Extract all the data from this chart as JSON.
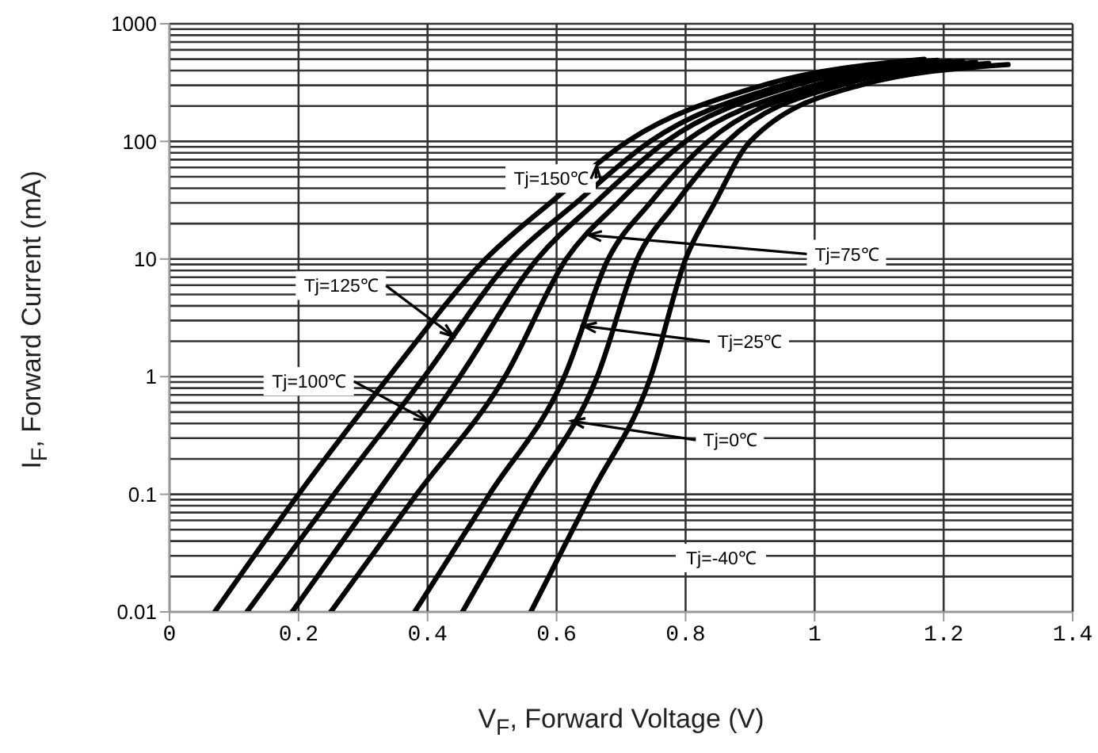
{
  "chart_data": {
    "type": "line",
    "xlabel": "V$_{F}$, Forward Voltage (V)",
    "ylabel": "I$_{F}$, Forward Current (mA)",
    "log": "y",
    "grid": true,
    "marker": "none",
    "line_style": "solid",
    "xlim": [
      0,
      1.4
    ],
    "xticks": [
      0,
      0.2,
      0.4,
      0.6,
      0.8,
      1,
      1.2,
      1.4
    ],
    "ylim": [
      0.01,
      1000
    ],
    "yticks": [
      0.01,
      0.1,
      1,
      10,
      100,
      1000
    ],
    "annotations": [
      {
        "text": "Tj=150℃",
        "x": 0.662,
        "y": 62
      },
      {
        "text": "Tj=125℃",
        "x": 0.44,
        "y": 2.2
      },
      {
        "text": "Tj=100℃",
        "x": 0.4,
        "y": 0.42
      },
      {
        "text": "Tj=75℃",
        "x": 0.649,
        "y": 16
      },
      {
        "text": "Tj=25℃",
        "x": 0.641,
        "y": 2.7
      },
      {
        "text": "Tj=0℃",
        "x": 0.623,
        "y": 0.42
      },
      "Tj=-40℃"
    ],
    "series": [
      {
        "color": "#000000",
        "x": [
          0.07,
          0.2,
          0.34,
          0.49,
          0.59,
          0.71,
          0.92,
          1.17
        ],
        "values": [
          0.01,
          0.1,
          1,
          10,
          30,
          100,
          300,
          500
        ]
      },
      {
        "color": "#000000",
        "x": [
          0.12,
          0.255,
          0.395,
          0.53,
          0.63,
          0.745,
          0.95,
          1.19
        ],
        "values": [
          0.01,
          0.1,
          1,
          10,
          30,
          100,
          300,
          490
        ]
      },
      {
        "color": "#000000",
        "x": [
          0.19,
          0.32,
          0.45,
          0.57,
          0.66,
          0.77,
          0.97,
          1.21
        ],
        "values": [
          0.01,
          0.1,
          1,
          10,
          30,
          100,
          300,
          480
        ]
      },
      {
        "color": "#000000",
        "x": [
          0.25,
          0.383,
          0.52,
          0.615,
          0.695,
          0.8,
          1.0,
          1.23
        ],
        "values": [
          0.01,
          0.1,
          1,
          10,
          30,
          100,
          300,
          480
        ]
      },
      {
        "color": "#000000",
        "x": [
          0.38,
          0.496,
          0.612,
          0.68,
          0.745,
          0.835,
          1.02,
          1.25
        ],
        "values": [
          0.01,
          0.1,
          1,
          10,
          30,
          100,
          300,
          470
        ]
      },
      {
        "color": "#000000",
        "x": [
          0.454,
          0.558,
          0.663,
          0.725,
          0.785,
          0.865,
          1.04,
          1.27
        ],
        "values": [
          0.01,
          0.1,
          1,
          10,
          30,
          100,
          300,
          460
        ]
      },
      {
        "color": "#000000",
        "x": [
          0.56,
          0.653,
          0.746,
          0.8,
          0.845,
          0.9,
          1.07,
          1.3
        ],
        "values": [
          0.01,
          0.1,
          1,
          10,
          30,
          100,
          300,
          450
        ]
      }
    ]
  }
}
